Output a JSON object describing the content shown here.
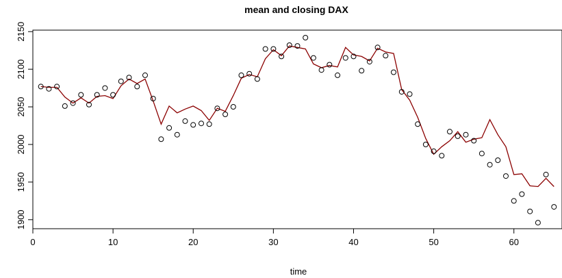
{
  "chart_data": {
    "type": "scatter",
    "title": "mean and closing DAX",
    "xlabel": "time",
    "ylabel": "",
    "xlim": [
      0,
      66
    ],
    "ylim": [
      1888,
      2152
    ],
    "xticks": [
      0,
      10,
      20,
      30,
      40,
      50,
      60
    ],
    "yticks": [
      1900,
      1950,
      2000,
      2050,
      2100,
      2150
    ],
    "grid": false,
    "series": [
      {
        "kind": "points",
        "marker": "open-circle",
        "color": "#000000",
        "x": [
          1,
          2,
          3,
          4,
          5,
          6,
          7,
          8,
          9,
          10,
          11,
          12,
          13,
          14,
          15,
          16,
          17,
          18,
          19,
          20,
          21,
          22,
          23,
          24,
          25,
          26,
          27,
          28,
          29,
          30,
          31,
          32,
          33,
          34,
          35,
          36,
          37,
          38,
          39,
          40,
          41,
          42,
          43,
          44,
          45,
          46,
          47,
          48,
          49,
          50,
          51,
          52,
          53,
          54,
          55,
          56,
          57,
          58,
          59,
          60,
          61,
          62,
          63,
          64,
          65
        ],
        "y": [
          2077,
          2074,
          2077,
          2051,
          2055,
          2066,
          2053,
          2066,
          2075,
          2066,
          2084,
          2089,
          2077,
          2092,
          2061,
          2007,
          2022,
          2013,
          2031,
          2026,
          2028,
          2027,
          2048,
          2040,
          2050,
          2092,
          2094,
          2087,
          2127,
          2127,
          2117,
          2132,
          2131,
          2142,
          2115,
          2099,
          2106,
          2092,
          2115,
          2117,
          2098,
          2110,
          2129,
          2118,
          2096,
          2070,
          2067,
          2027,
          2000,
          1991,
          1985,
          2017,
          2011,
          2013,
          2005,
          1988,
          1973,
          1979,
          1958,
          1925,
          1934,
          1911,
          1896,
          1960,
          1917
        ]
      },
      {
        "kind": "line",
        "color": "#8b0000",
        "x": [
          1,
          2,
          3,
          4,
          5,
          6,
          7,
          8,
          9,
          10,
          11,
          12,
          13,
          14,
          15,
          16,
          17,
          18,
          19,
          20,
          21,
          22,
          23,
          24,
          25,
          26,
          27,
          28,
          29,
          30,
          31,
          32,
          33,
          34,
          35,
          36,
          37,
          38,
          39,
          40,
          41,
          42,
          43,
          44,
          45,
          46,
          47,
          48,
          49,
          50,
          51,
          52,
          53,
          54,
          55,
          56,
          57,
          58,
          59,
          60,
          61,
          62,
          63,
          64,
          65
        ],
        "y": [
          2077,
          2076,
          2076,
          2063,
          2055,
          2062,
          2055,
          2064,
          2065,
          2061,
          2078,
          2087,
          2081,
          2087,
          2058,
          2027,
          2051,
          2042,
          2047,
          2051,
          2045,
          2032,
          2048,
          2044,
          2065,
          2088,
          2093,
          2090,
          2114,
          2126,
          2118,
          2131,
          2129,
          2127,
          2107,
          2102,
          2105,
          2103,
          2129,
          2119,
          2117,
          2111,
          2128,
          2123,
          2121,
          2073,
          2059,
          2036,
          2008,
          1987,
          1997,
          2005,
          2017,
          2003,
          2007,
          2009,
          2033,
          2013,
          1997,
          1960,
          1961,
          1945,
          1944,
          1955,
          1944
        ]
      }
    ]
  }
}
